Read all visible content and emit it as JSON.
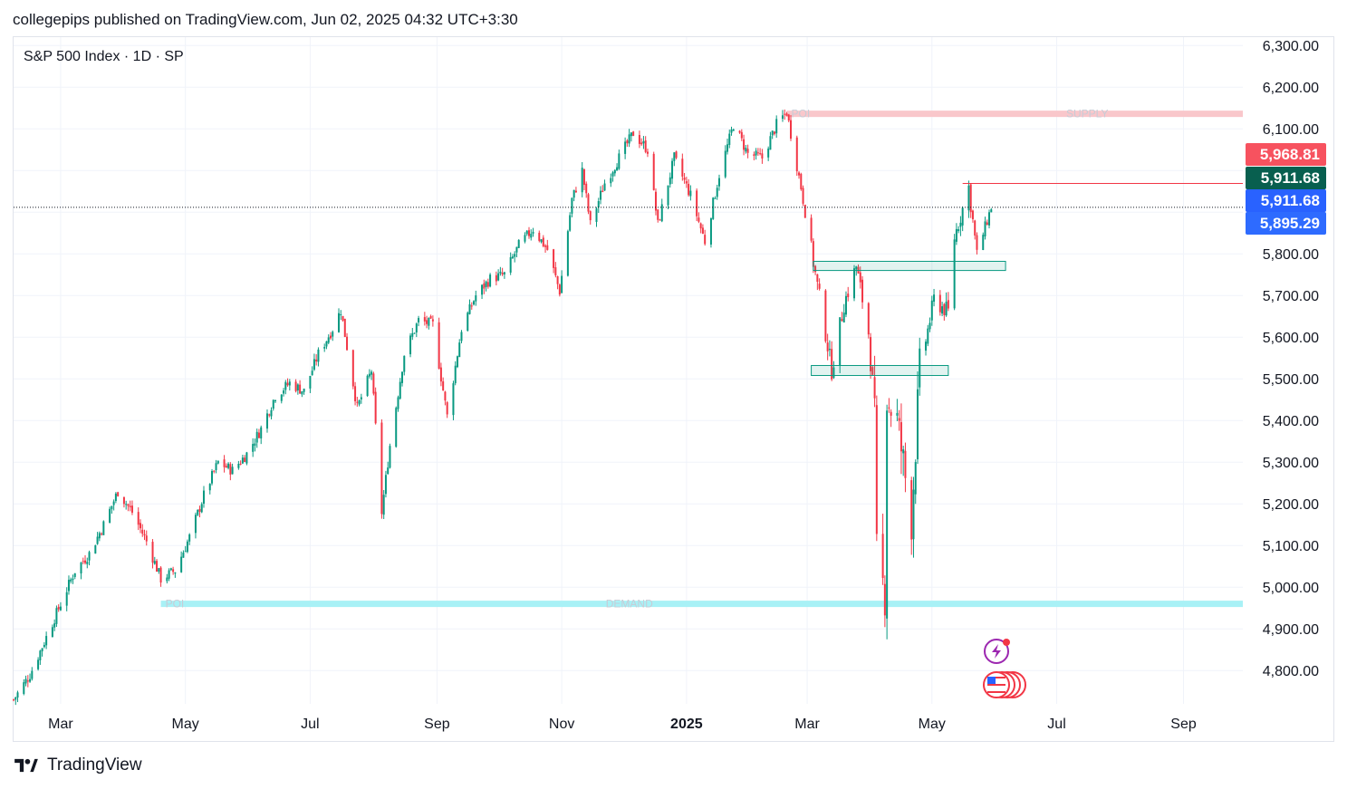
{
  "header": {
    "publisher_line": "collegepips published on TradingView.com, Jun 02, 2025 04:32 UTC+3:30"
  },
  "symbol": {
    "label": "S&P 500 Index · 1D · SP"
  },
  "footer": {
    "brand": "TradingView",
    "logo_icon": "tradingview-logo-icon"
  },
  "colors": {
    "up": "#089981",
    "down": "#f23645",
    "grid": "#f0f3fa",
    "axis_text": "#131722",
    "supply_zone": "#f9c7cb",
    "demand_zone": "#a8f1f6",
    "box_stroke": "#089981",
    "tag_red": "#f7525f",
    "tag_green": "#085f4f",
    "tag_blue": "#2962ff",
    "tag_blue2": "#2e6bff"
  },
  "chart_data": {
    "type": "candlestick",
    "title": "S&P 500 Index · 1D · SP",
    "ylim": [
      4720,
      6320
    ],
    "y_ticks": [
      4800,
      4900,
      5000,
      5100,
      5200,
      5300,
      5400,
      5500,
      5600,
      5700,
      5800,
      5900,
      6000,
      6100,
      6200,
      6300
    ],
    "y_tick_labels": [
      "4,800.00",
      "4,900.00",
      "5,000.00",
      "5,100.00",
      "5,200.00",
      "5,300.00",
      "5,400.00",
      "5,500.00",
      "5,600.00",
      "5,700.00",
      "5,800.00",
      "",
      "",
      "6,100.00",
      "6,200.00",
      "6,300.00"
    ],
    "x_range": [
      "2024-02-07",
      "2025-09-30"
    ],
    "x_ticks": [
      {
        "date": "2024-03-01",
        "label": "Mar",
        "bold": false
      },
      {
        "date": "2024-05-01",
        "label": "May",
        "bold": false
      },
      {
        "date": "2024-07-01",
        "label": "Jul",
        "bold": false
      },
      {
        "date": "2024-09-01",
        "label": "Sep",
        "bold": false
      },
      {
        "date": "2024-11-01",
        "label": "Nov",
        "bold": false
      },
      {
        "date": "2025-01-01",
        "label": "2025",
        "bold": true
      },
      {
        "date": "2025-03-01",
        "label": "Mar",
        "bold": false
      },
      {
        "date": "2025-05-01",
        "label": "May",
        "bold": false
      },
      {
        "date": "2025-07-01",
        "label": "Jul",
        "bold": false
      },
      {
        "date": "2025-09-01",
        "label": "Sep",
        "bold": false
      }
    ],
    "close_path": [
      [
        "2024-02-07",
        4730
      ],
      [
        "2024-02-15",
        4790
      ],
      [
        "2024-02-23",
        4880
      ],
      [
        "2024-03-01",
        4960
      ],
      [
        "2024-03-08",
        5040
      ],
      [
        "2024-03-15",
        5080
      ],
      [
        "2024-03-22",
        5150
      ],
      [
        "2024-03-29",
        5230
      ],
      [
        "2024-04-05",
        5180
      ],
      [
        "2024-04-12",
        5110
      ],
      [
        "2024-04-19",
        5020
      ],
      [
        "2024-04-26",
        5040
      ],
      [
        "2024-05-03",
        5120
      ],
      [
        "2024-05-10",
        5220
      ],
      [
        "2024-05-17",
        5300
      ],
      [
        "2024-05-24",
        5280
      ],
      [
        "2024-05-31",
        5320
      ],
      [
        "2024-06-07",
        5380
      ],
      [
        "2024-06-14",
        5460
      ],
      [
        "2024-06-21",
        5490
      ],
      [
        "2024-06-28",
        5470
      ],
      [
        "2024-07-05",
        5560
      ],
      [
        "2024-07-12",
        5620
      ],
      [
        "2024-07-16",
        5665
      ],
      [
        "2024-07-24",
        5430
      ],
      [
        "2024-07-31",
        5520
      ],
      [
        "2024-08-05",
        5180
      ],
      [
        "2024-08-09",
        5340
      ],
      [
        "2024-08-16",
        5560
      ],
      [
        "2024-08-23",
        5640
      ],
      [
        "2024-08-30",
        5630
      ],
      [
        "2024-09-06",
        5410
      ],
      [
        "2024-09-13",
        5620
      ],
      [
        "2024-09-20",
        5700
      ],
      [
        "2024-09-27",
        5740
      ],
      [
        "2024-10-04",
        5750
      ],
      [
        "2024-10-11",
        5820
      ],
      [
        "2024-10-18",
        5860
      ],
      [
        "2024-10-25",
        5810
      ],
      [
        "2024-10-31",
        5710
      ],
      [
        "2024-11-06",
        5930
      ],
      [
        "2024-11-11",
        6000
      ],
      [
        "2024-11-15",
        5870
      ],
      [
        "2024-11-22",
        5970
      ],
      [
        "2024-11-29",
        6030
      ],
      [
        "2024-12-06",
        6090
      ],
      [
        "2024-12-13",
        6050
      ],
      [
        "2024-12-18",
        5870
      ],
      [
        "2024-12-26",
        6030
      ],
      [
        "2025-01-03",
        5940
      ],
      [
        "2025-01-10",
        5830
      ],
      [
        "2025-01-17",
        5990
      ],
      [
        "2025-01-24",
        6110
      ],
      [
        "2025-01-31",
        6040
      ],
      [
        "2025-02-07",
        6030
      ],
      [
        "2025-02-14",
        6110
      ],
      [
        "2025-02-19",
        6140
      ],
      [
        "2025-02-26",
        5960
      ],
      [
        "2025-03-04",
        5780
      ],
      [
        "2025-03-10",
        5610
      ],
      [
        "2025-03-13",
        5520
      ],
      [
        "2025-03-19",
        5680
      ],
      [
        "2025-03-25",
        5770
      ],
      [
        "2025-03-31",
        5610
      ],
      [
        "2025-04-03",
        5400
      ],
      [
        "2025-04-04",
        5080
      ],
      [
        "2025-04-08",
        4980
      ],
      [
        "2025-04-09",
        5450
      ],
      [
        "2025-04-14",
        5400
      ],
      [
        "2025-04-21",
        5160
      ],
      [
        "2025-04-25",
        5520
      ],
      [
        "2025-05-02",
        5690
      ],
      [
        "2025-05-09",
        5660
      ],
      [
        "2025-05-12",
        5840
      ],
      [
        "2025-05-19",
        5960
      ],
      [
        "2025-05-23",
        5800
      ],
      [
        "2025-05-30",
        5912
      ]
    ],
    "zones": [
      {
        "label": "SUPPLY",
        "poi_label": "POI",
        "from": "2025-02-19",
        "y": 6136,
        "color_key": "supply_zone"
      },
      {
        "label": "DEMAND",
        "poi_label": "POI",
        "from": "2024-04-19",
        "y": 4960,
        "color_key": "demand_zone"
      }
    ],
    "boxes": [
      {
        "from": "2025-03-04",
        "to": "2025-06-06",
        "y_low": 5760,
        "y_high": 5782
      },
      {
        "from": "2025-03-03",
        "to": "2025-05-09",
        "y_low": 5508,
        "y_high": 5532
      }
    ],
    "hline": {
      "from": "2025-05-16",
      "y": 5968.81
    },
    "last_price_dotted": 5911.68,
    "price_tags": [
      {
        "value": 5968.81,
        "label": "5,968.81",
        "color_key": "tag_red"
      },
      {
        "value": 5940,
        "label": "5,911.68",
        "color_key": "tag_green"
      },
      {
        "value": 5911.68,
        "label": "5,911.68",
        "color_key": "tag_blue"
      },
      {
        "value": 5895.29,
        "label": "5,895.29",
        "color_key": "tag_blue2"
      }
    ]
  },
  "markers": [
    {
      "name": "lightning-event-icon",
      "date": "2025-05-28",
      "y": 4823
    },
    {
      "name": "us-flag-event-icon",
      "date": "2025-05-28",
      "y": 4776
    }
  ]
}
